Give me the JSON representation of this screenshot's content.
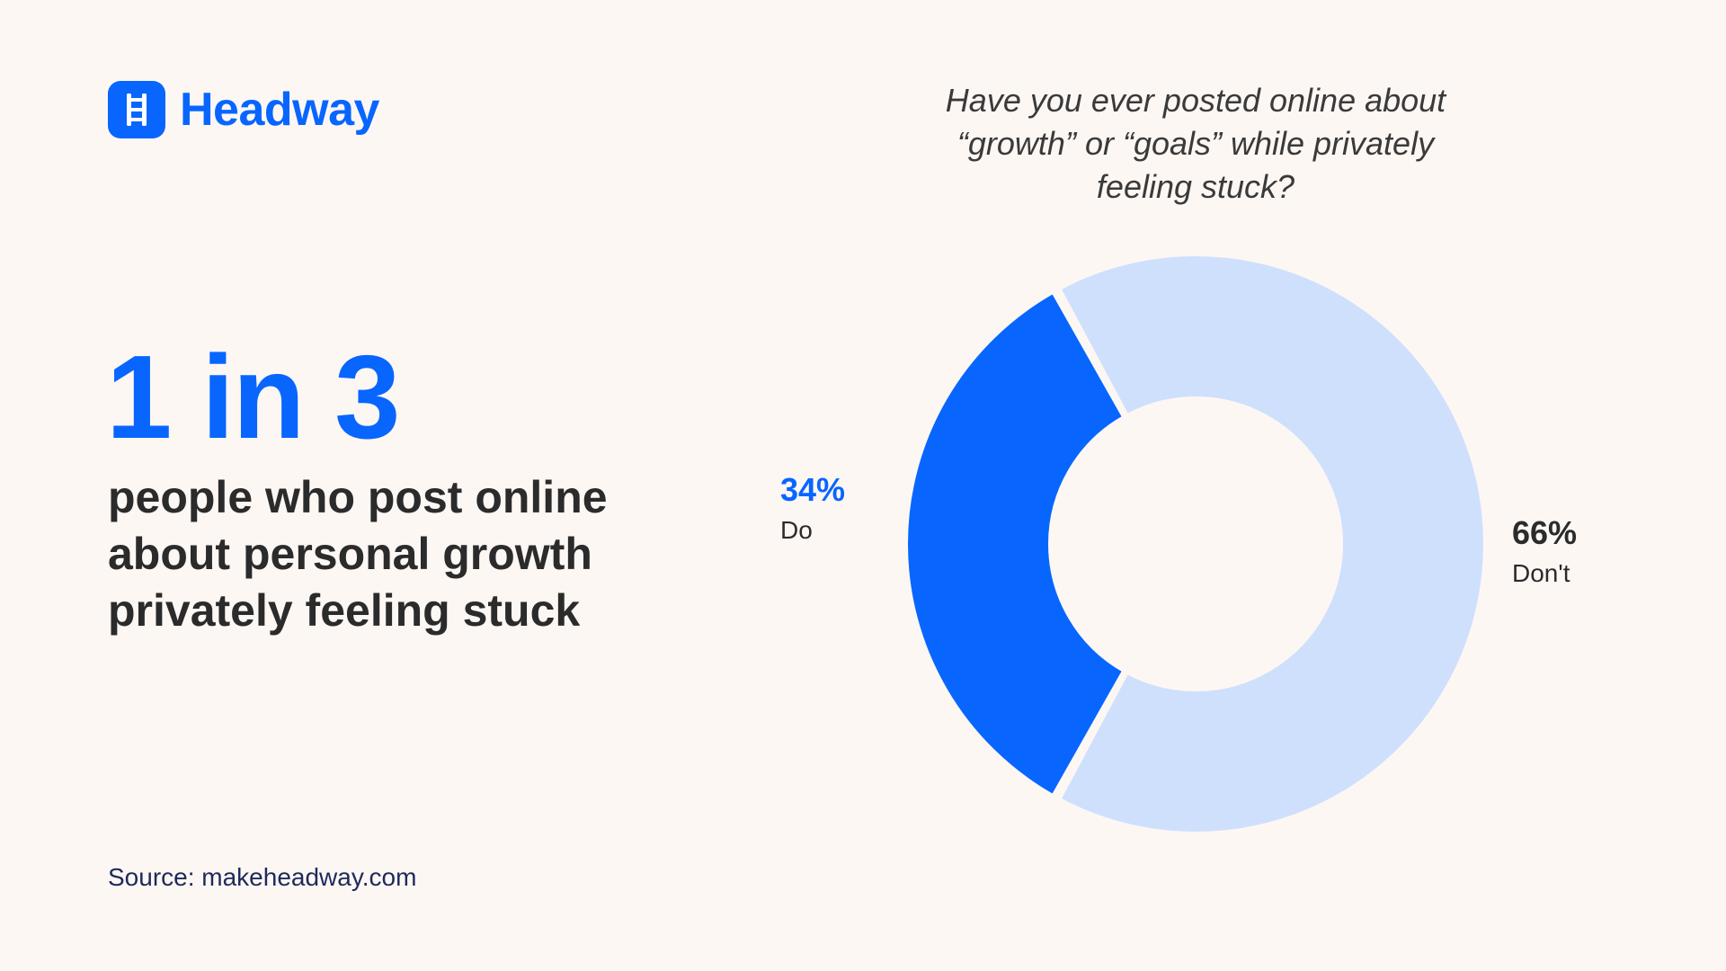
{
  "brand": {
    "name": "Headway",
    "icon": "ladder-icon",
    "color": "#0866ff"
  },
  "stat": "1 in 3",
  "headline_lines": [
    "people who post online",
    "about personal growth",
    "privately feeling stuck"
  ],
  "source": "Source: makeheadway.com",
  "chart_data": {
    "type": "pie",
    "title_lines": [
      "Have you ever posted online about",
      "“growth” or “goals” while privately",
      "feeling stuck?"
    ],
    "donut": true,
    "slices": [
      {
        "label": "Do",
        "value": 34,
        "value_label": "34%",
        "color": "#0866ff",
        "label_color": "#0866ff"
      },
      {
        "label": "Don't",
        "value": 66,
        "value_label": "66%",
        "color": "#cfe0fd",
        "label_color": "#2b2b2b"
      }
    ]
  }
}
